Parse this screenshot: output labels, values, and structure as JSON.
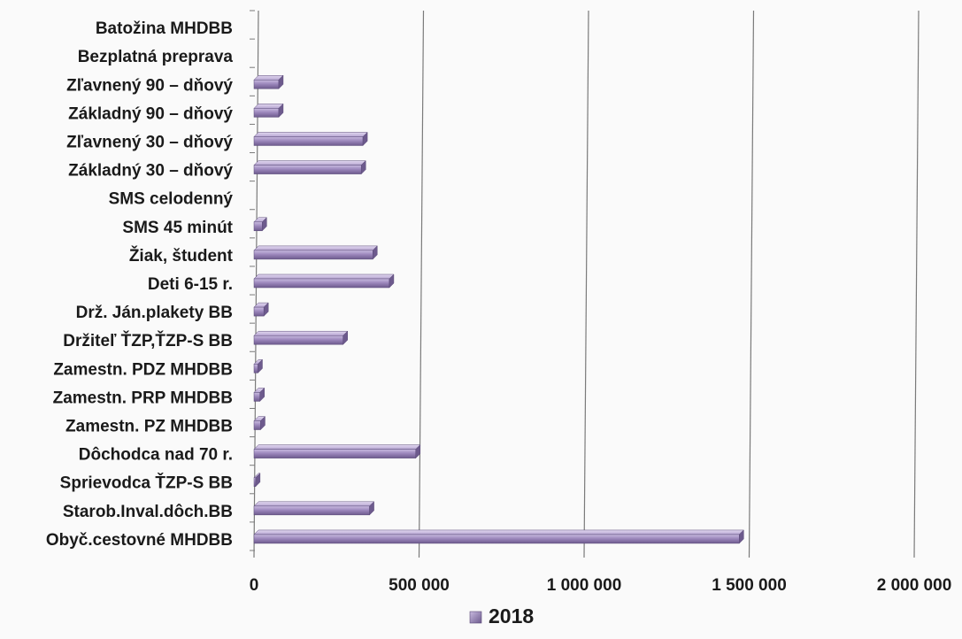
{
  "chart_data": {
    "type": "bar",
    "orientation": "horizontal",
    "style": "3d",
    "categories": [
      "Batožina MHDBB",
      "Bezplatná preprava",
      "Zľavnený 90 – dňový",
      "Základný 90 – dňový",
      "Zľavnený 30 – dňový",
      "Základný 30 – dňový",
      "SMS celodenný",
      "SMS 45 minút",
      "Žiak, študent",
      "Deti 6-15 r.",
      "Drž. Ján.plakety BB",
      "Držiteľ ŤZP,ŤZP-S BB",
      "Zamestn. PDZ MHDBB",
      "Zamestn. PRP MHDBB",
      "Zamestn. PZ MHDBB",
      "Dôchodca nad 70 r.",
      "Sprievodca ŤZP-S BB",
      "Starob.Inval.dôch.BB",
      "Obyč.cestovné MHDBB"
    ],
    "series": [
      {
        "name": "2018",
        "color": "#8e7bab",
        "values": [
          0,
          0,
          75000,
          75000,
          330000,
          325000,
          0,
          25000,
          360000,
          410000,
          30000,
          270000,
          12000,
          18000,
          20000,
          490000,
          5000,
          350000,
          1470000
        ]
      }
    ],
    "xlim": [
      0,
      2000000
    ],
    "xticks": [
      0,
      500000,
      1000000,
      1500000,
      2000000
    ],
    "xtick_labels": [
      "0",
      "500 000",
      "1 000 000",
      "1 500 000",
      "2 000 000"
    ],
    "title": "",
    "xlabel": "",
    "ylabel": "",
    "grid": "vertical",
    "legend_position": "bottom"
  }
}
